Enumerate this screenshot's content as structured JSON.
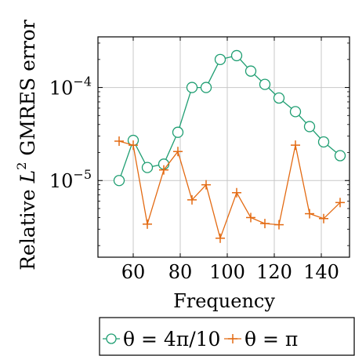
{
  "chart_data": {
    "type": "line",
    "xlabel": "Frequency",
    "ylabel_parts": {
      "prefix": "Relative ",
      "L": "L",
      "exp": "2",
      "suffix": " GMRES error"
    },
    "y_scale": "log",
    "xlim": [
      45,
      152
    ],
    "ylim": [
      1.5e-06,
      0.00035
    ],
    "grid": true,
    "legend_position": "bottom",
    "x_ticks": [
      60,
      80,
      100,
      120,
      140
    ],
    "x_tick_labels": [
      "60",
      "80",
      "100",
      "120",
      "140"
    ],
    "y_ticks": [
      {
        "value": 1e-05,
        "base": "10",
        "exp": "−5"
      },
      {
        "value": 0.0001,
        "base": "10",
        "exp": "−4"
      }
    ],
    "series": [
      {
        "name": "θ = 4π/10",
        "color": "#1f9e72",
        "marker": "circle",
        "x": [
          54,
          60,
          66,
          73,
          79,
          85,
          91,
          97,
          104,
          110,
          116,
          122,
          129,
          135,
          141,
          148
        ],
        "y": [
          1e-05,
          2.7e-05,
          1.38e-05,
          1.5e-05,
          3.3e-05,
          0.0001,
          0.0001,
          0.0002,
          0.00022,
          0.00015,
          0.000108,
          7.7e-05,
          5.5e-05,
          3.8e-05,
          2.6e-05,
          1.85e-05
        ]
      },
      {
        "name": "θ = π",
        "color": "#e36a12",
        "marker": "plus",
        "x": [
          54,
          60,
          66,
          73,
          79,
          85,
          91,
          97,
          104,
          110,
          116,
          122,
          129,
          135,
          141,
          148
        ],
        "y": [
          2.65e-05,
          2.4e-05,
          3.4e-06,
          1.3e-05,
          2.05e-05,
          6.2e-06,
          9e-06,
          2.4e-06,
          7.4e-06,
          4e-06,
          3.45e-06,
          3.35e-06,
          2.4e-05,
          4.4e-06,
          3.9e-06,
          5.8e-06
        ]
      }
    ]
  }
}
